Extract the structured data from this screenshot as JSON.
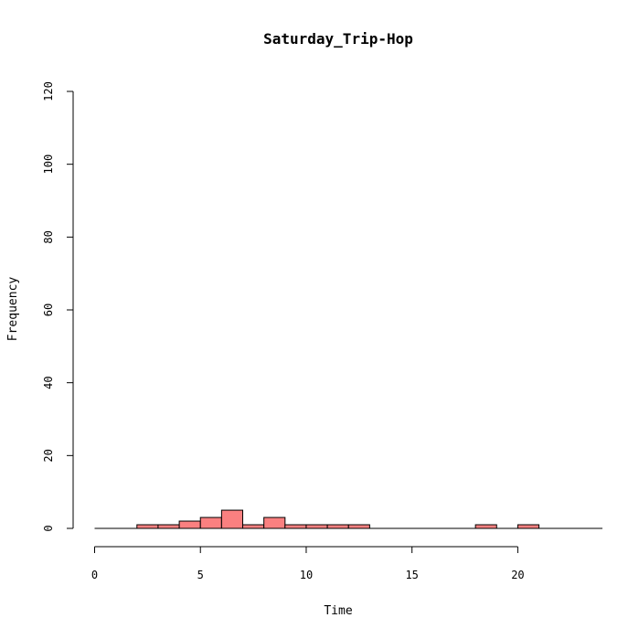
{
  "chart_data": {
    "type": "bar",
    "title": "Saturday_Trip-Hop",
    "xlabel": "Time",
    "ylabel": "Frequency",
    "xlim": [
      0,
      24
    ],
    "ylim": [
      0,
      120
    ],
    "bin_width": 1,
    "bin_edges": [
      0,
      1,
      2,
      3,
      4,
      5,
      6,
      7,
      8,
      9,
      10,
      11,
      12,
      13,
      14,
      15,
      16,
      17,
      18,
      19,
      20,
      21,
      22,
      23,
      24
    ],
    "values": [
      0,
      0,
      1,
      1,
      2,
      3,
      5,
      1,
      3,
      1,
      1,
      1,
      1,
      0,
      0,
      0,
      0,
      0,
      1,
      0,
      1,
      0,
      0,
      0
    ],
    "x_ticks": [
      0,
      5,
      10,
      15,
      20
    ],
    "x_tick_labels": [
      "0",
      "5",
      "10",
      "15",
      "20"
    ],
    "y_ticks": [
      0,
      20,
      40,
      60,
      80,
      100,
      120
    ],
    "y_tick_labels": [
      "0",
      "20",
      "40",
      "60",
      "80",
      "100",
      "120"
    ],
    "bar_color": "#fa8080",
    "grid": false
  }
}
